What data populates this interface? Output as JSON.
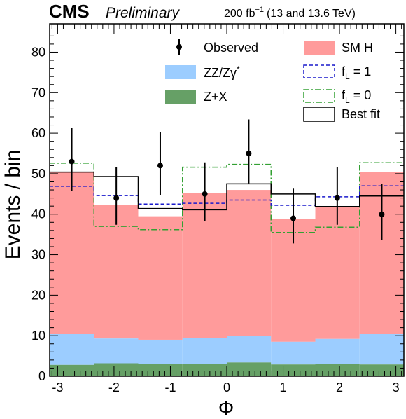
{
  "header": {
    "experiment": "CMS",
    "status": "Preliminary",
    "luminosity_prefix": "200 fb",
    "luminosity_exp": "−1",
    "energy": "(13 and 13.6 TeV)"
  },
  "legend": {
    "observed": "Observed",
    "smh": "SM H",
    "zz_base": "ZZ/Zγ",
    "zz_sup": "*",
    "zx": "Z+X",
    "fl1_base": "f",
    "fl1_sub": "L",
    "fl1_rest": " = 1",
    "fl0_base": "f",
    "fl0_sub": "L",
    "fl0_rest": " = 0",
    "bestfit": "Best fit"
  },
  "colors": {
    "smh": "#ff9b9b",
    "zz": "#9ccdff",
    "zx": "#66a066",
    "fl1": "#1a1acc",
    "fl0": "#33a033",
    "bestfit": "#000000",
    "observed": "#000000"
  },
  "chart_data": {
    "type": "bar",
    "xlabel": "Φ",
    "ylabel": "Events / bin",
    "xlim": [
      -3.14159,
      3.14159
    ],
    "ylim": [
      0,
      87
    ],
    "xticks": [
      -3,
      -2,
      -1,
      0,
      1,
      2,
      3
    ],
    "yticks": [
      0,
      10,
      20,
      30,
      40,
      50,
      60,
      70,
      80
    ],
    "bin_edges": [
      -3.14159,
      -2.35619,
      -1.5708,
      -0.7854,
      0,
      0.7854,
      1.5708,
      2.35619,
      3.14159
    ],
    "zx": [
      2.8,
      3.2,
      3.0,
      3.1,
      3.4,
      2.9,
      3.1,
      2.9
    ],
    "zz_plus_zx": [
      10.5,
      9.3,
      9.0,
      9.5,
      10.0,
      8.5,
      9.2,
      10.5
    ],
    "smh_total": [
      50.5,
      42.3,
      39.5,
      45.2,
      46.0,
      38.9,
      42.0,
      50.5
    ],
    "fl1": [
      46.9,
      44.6,
      42.5,
      42.7,
      43.5,
      42.2,
      44.3,
      47.0
    ],
    "fl0": [
      52.6,
      37.0,
      36.2,
      51.6,
      52.3,
      35.5,
      36.8,
      52.7
    ],
    "best_fit": [
      50.4,
      49.3,
      41.4,
      41.1,
      47.5,
      45.0,
      41.9,
      44.5
    ],
    "observed": {
      "x": [
        -2.75,
        -1.96,
        -1.18,
        -0.39,
        0.39,
        1.18,
        1.96,
        2.75
      ],
      "y": [
        53,
        44,
        52,
        45,
        55,
        39,
        44,
        40
      ],
      "err_up": [
        8.3,
        7.7,
        8.2,
        7.8,
        8.4,
        7.3,
        7.7,
        7.4
      ],
      "err_down": [
        7.2,
        6.6,
        7.2,
        6.7,
        7.4,
        6.2,
        6.6,
        6.3
      ]
    }
  }
}
